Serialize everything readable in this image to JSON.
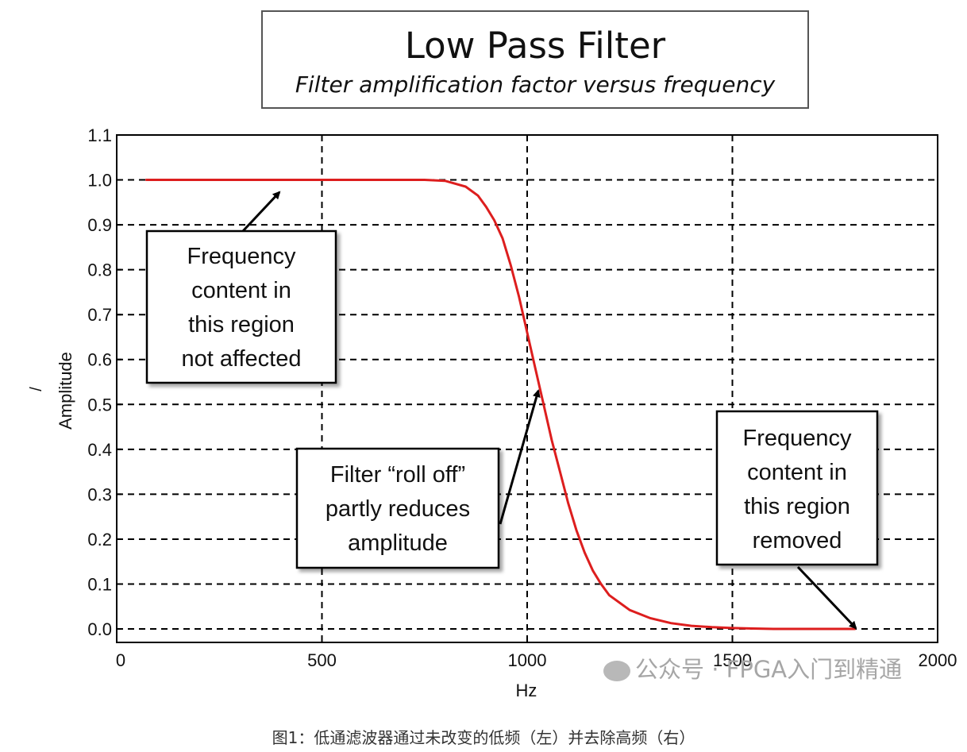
{
  "chart_data": {
    "type": "line",
    "title": "Low Pass Filter",
    "subtitle": "Filter amplification factor versus frequency",
    "xlabel": "Hz",
    "ylabel": "Amplitude",
    "ylabel_mark": "/",
    "xlim": [
      0,
      2000
    ],
    "ylim": [
      -0.03,
      1.1
    ],
    "x_ticks": [
      0,
      500,
      1000,
      1500,
      2000
    ],
    "x_tick_labels": [
      "0",
      "500",
      "1000",
      "1500",
      "2000"
    ],
    "y_ticks": [
      0.0,
      0.1,
      0.2,
      0.3,
      0.4,
      0.5,
      0.6,
      0.7,
      0.8,
      0.9,
      1.0,
      1.1
    ],
    "y_tick_labels": [
      "0.0",
      "0.1",
      "0.2",
      "0.3",
      "0.4",
      "0.5",
      "0.6",
      "0.7",
      "0.8",
      "0.9",
      "1.0",
      "1.1"
    ],
    "grid": true,
    "series": [
      {
        "color": "#dd1e1e",
        "x": [
          70,
          200,
          400,
          600,
          750,
          800,
          850,
          880,
          900,
          920,
          940,
          960,
          980,
          1000,
          1020,
          1040,
          1060,
          1080,
          1100,
          1120,
          1140,
          1160,
          1180,
          1200,
          1250,
          1300,
          1350,
          1400,
          1450,
          1500,
          1550,
          1600,
          1700,
          1800
        ],
        "y": [
          1.0,
          1.0,
          1.0,
          1.0,
          1.0,
          0.998,
          0.985,
          0.965,
          0.94,
          0.91,
          0.87,
          0.81,
          0.74,
          0.66,
          0.58,
          0.5,
          0.42,
          0.35,
          0.28,
          0.22,
          0.17,
          0.13,
          0.1,
          0.075,
          0.042,
          0.024,
          0.013,
          0.007,
          0.004,
          0.002,
          0.001,
          0.0,
          0.0,
          0.0
        ]
      }
    ],
    "annotations": [
      {
        "lines": [
          "Frequency",
          "content in",
          "this region",
          "not affected"
        ]
      },
      {
        "lines": [
          "Filter “roll off”",
          "partly reduces",
          "amplitude"
        ]
      },
      {
        "lines": [
          "Frequency",
          "content in",
          "this region",
          "removed"
        ]
      }
    ]
  },
  "watermark": "公众号 · FPGA入门到精通",
  "caption": "图1：低通滤波器通过未改变的低频（左）并去除高频（右）"
}
